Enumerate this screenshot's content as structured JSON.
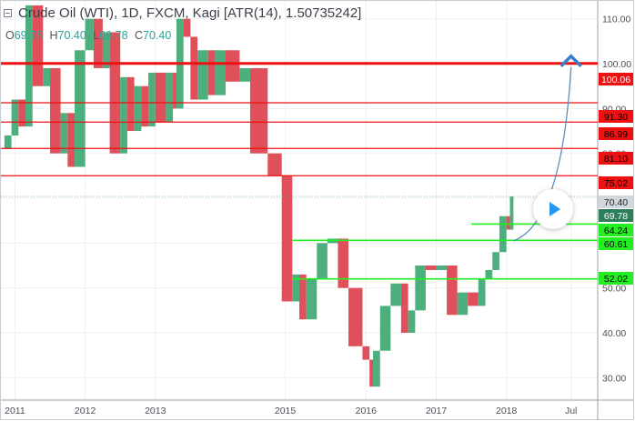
{
  "header": {
    "title": "Crude Oil (WTI), 1D, FXCM, Kagi [ATR(14), 1.50735242]"
  },
  "ohlc": {
    "o_label": "O",
    "o_value": "69.78",
    "h_label": "H",
    "h_value": "70.40",
    "l_label": "L",
    "l_value": "69.78",
    "c_label": "C",
    "c_value": "70.40"
  },
  "colors": {
    "up": "#4caf7d",
    "down": "#e0505a",
    "resistance": "#ee1111",
    "support": "#22ee22",
    "forecast_arrow": "#5b8db8",
    "arrow_head": "#3a7fc8",
    "price_badge_bg": "#d0d7dd",
    "last_price_badge_bg": "#2e7d5b",
    "grid": "#eef0f3"
  },
  "chart_data": {
    "type": "kagi",
    "symbol": "Crude Oil (WTI)",
    "timeframe": "1D",
    "source": "FXCM",
    "xlim": [
      2010.8,
      2019.3
    ],
    "ylim": [
      25,
      114
    ],
    "y_ticks": [
      30,
      40,
      50,
      60,
      70,
      80,
      90,
      100,
      110
    ],
    "y_tick_labels": [
      "30.00",
      "40.00",
      "50.00",
      "60.00",
      "70.00",
      "80.00",
      "90.00",
      "100.00",
      "110.00"
    ],
    "x_ticks": [
      2011,
      2012,
      2013,
      2014.85,
      2016,
      2017,
      2018,
      2018.92
    ],
    "x_tick_labels": [
      "2011",
      "2012",
      "2013",
      "2015",
      "2016",
      "2017",
      "2018",
      "Jul"
    ],
    "kagi_path": [
      [
        2010.85,
        81
      ],
      [
        2010.95,
        84
      ],
      [
        2011.05,
        92
      ],
      [
        2011.15,
        86
      ],
      [
        2011.25,
        113
      ],
      [
        2011.4,
        95
      ],
      [
        2011.5,
        99
      ],
      [
        2011.65,
        80
      ],
      [
        2011.75,
        89
      ],
      [
        2011.85,
        77
      ],
      [
        2012.0,
        103
      ],
      [
        2012.12,
        110
      ],
      [
        2012.25,
        99
      ],
      [
        2012.35,
        107
      ],
      [
        2012.5,
        80
      ],
      [
        2012.6,
        97
      ],
      [
        2012.7,
        85
      ],
      [
        2012.8,
        95
      ],
      [
        2012.9,
        86
      ],
      [
        2013.0,
        98
      ],
      [
        2013.15,
        87
      ],
      [
        2013.25,
        98
      ],
      [
        2013.3,
        90
      ],
      [
        2013.4,
        110
      ],
      [
        2013.5,
        106
      ],
      [
        2013.6,
        92
      ],
      [
        2013.75,
        103
      ],
      [
        2013.85,
        93
      ],
      [
        2014.0,
        103
      ],
      [
        2014.2,
        96
      ],
      [
        2014.35,
        99
      ],
      [
        2014.6,
        80
      ],
      [
        2014.8,
        75
      ],
      [
        2014.95,
        47
      ],
      [
        2015.05,
        53
      ],
      [
        2015.15,
        43
      ],
      [
        2015.3,
        52
      ],
      [
        2015.45,
        60
      ],
      [
        2015.6,
        61
      ],
      [
        2015.75,
        50
      ],
      [
        2015.95,
        37
      ],
      [
        2016.05,
        34
      ],
      [
        2016.1,
        28
      ],
      [
        2016.2,
        36
      ],
      [
        2016.35,
        46
      ],
      [
        2016.5,
        51
      ],
      [
        2016.6,
        40
      ],
      [
        2016.7,
        45
      ],
      [
        2016.85,
        55
      ],
      [
        2017.0,
        54
      ],
      [
        2017.15,
        55
      ],
      [
        2017.3,
        44
      ],
      [
        2017.45,
        49
      ],
      [
        2017.6,
        46
      ],
      [
        2017.7,
        52
      ],
      [
        2017.8,
        54
      ],
      [
        2017.9,
        58
      ],
      [
        2018.0,
        66
      ],
      [
        2018.05,
        63
      ],
      [
        2018.1,
        70.4
      ]
    ],
    "resistance_levels": [
      100.06,
      91.3,
      86.99,
      81.1,
      75.02
    ],
    "support_levels": [
      64.24,
      60.61,
      52.02
    ],
    "current_price": 70.4,
    "last_close": 69.78,
    "price_labels": [
      "100.06",
      "91.30",
      "86.99",
      "81.10",
      "75.02",
      "70.40",
      "69.78",
      "64.24",
      "60.61",
      "52.02"
    ],
    "forecast_arrow": {
      "from": [
        2018.1,
        60.5
      ],
      "to": [
        2018.92,
        100.06
      ]
    }
  }
}
